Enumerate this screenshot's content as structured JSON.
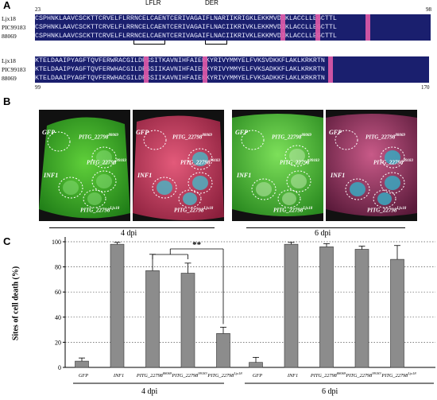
{
  "panel_a": {
    "letter": "A",
    "motif_lflr": "LFLR",
    "motif_der": "DER",
    "block1": {
      "start": "23",
      "end": "98",
      "rows": [
        {
          "name": "Ljx18",
          "seq": "CSPHNKLAAVCSCKTTCRVELFLRRNCELCAENTCERIVAGAIFLNARIIKRIGKLEKKMVDSKLACCLLEGCTTL"
        },
        {
          "name": "PIC99183",
          "seq": "CSPHNKLAAVCSCKTTCRVELFLRRNCELCAENTCERIVAGAIFLNACIIKRIVKLEKKMVDIKLACCLLEGCTTL"
        },
        {
          "name": "88069",
          "seq": "CSPHNKLAAVCSCKTTCRVELFLRRNCELCAENTCERIVAGAIFLNACIIKRIVKLEKKMVDIKLACCLLEGCTTL"
        }
      ]
    },
    "block2": {
      "start": "99",
      "end": "170",
      "rows": [
        {
          "name": "Ljx18",
          "seq": "KTELDAAIPYAGFTQVFERWRACGILDPSSITKAVNIHFAIEKKYRIVYMMYELFVKSVDKKFLAKLKRKRTN"
        },
        {
          "name": "PIC99183",
          "seq": "KTELDAAIPYAGFTQVFERWHACGILDPSSIIKAVNIHFAIEKKYRIVYMMYELFVKSADKKFLAKLKRKRTN"
        },
        {
          "name": "88069",
          "seq": "KTELDAAIPYAGFTQVFERWHACGILDPSSIIKAVNIHFAIEKKYRIVYMMYELFVKSADKKFLAKLKRKRTN"
        }
      ]
    }
  },
  "panel_b": {
    "letter": "B",
    "labels": {
      "gfp": "GFP",
      "inf1": "INF1",
      "p88069": "PITG_22798",
      "s88069": "88069",
      "p99183": "PITG_22798",
      "s99183": "99183",
      "pljx18": "PITG_22798",
      "sljx18": "Ljx18"
    },
    "dpi_left": "4 dpi",
    "dpi_right": "6 dpi"
  },
  "panel_c": {
    "letter": "C",
    "significance": "**",
    "group_left": "4 dpi",
    "group_right": "6 dpi",
    "colors": {
      "bar": "#8c8c8c"
    }
  },
  "chart_data": {
    "type": "bar",
    "ylabel": "Sites of cell death (%)",
    "ylim": [
      0,
      100
    ],
    "yticks": [
      0,
      20,
      40,
      60,
      80,
      100
    ],
    "grid": "horizontal-dotted",
    "groups": [
      "4 dpi",
      "6 dpi"
    ],
    "categories": [
      {
        "name": "GFP",
        "sup": ""
      },
      {
        "name": "INF1",
        "sup": ""
      },
      {
        "name": "PITG_22798",
        "sup": "88069"
      },
      {
        "name": "PITG_22798",
        "sup": "99183"
      },
      {
        "name": "PITG_22798",
        "sup": "Ljx18"
      }
    ],
    "series": [
      {
        "values": [
          5,
          98,
          77,
          75,
          27
        ],
        "errors": [
          2.5,
          1.5,
          13,
          8,
          5
        ]
      },
      {
        "values": [
          4,
          98,
          96,
          94,
          86
        ],
        "errors": [
          4,
          1.5,
          2.5,
          2.5,
          11
        ]
      }
    ]
  }
}
